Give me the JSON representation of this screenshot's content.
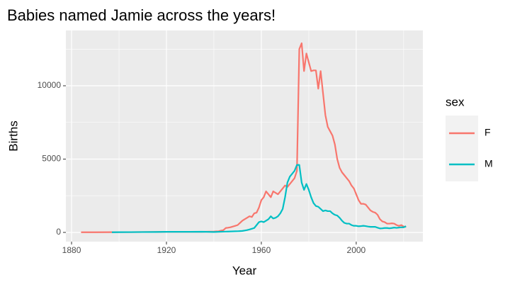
{
  "chart_data": {
    "type": "line",
    "title": "Babies named Jamie across the years!",
    "x_label": "Year",
    "y_label": "Births",
    "legend_title": "sex",
    "x": [
      1884,
      1890,
      1897,
      1900,
      1905,
      1910,
      1915,
      1920,
      1925,
      1930,
      1935,
      1940,
      1941,
      1942,
      1943,
      1944,
      1945,
      1946,
      1947,
      1948,
      1949,
      1950,
      1951,
      1952,
      1953,
      1954,
      1955,
      1956,
      1957,
      1958,
      1959,
      1960,
      1961,
      1962,
      1963,
      1964,
      1965,
      1966,
      1967,
      1968,
      1969,
      1970,
      1971,
      1972,
      1973,
      1974,
      1975,
      1976,
      1977,
      1978,
      1979,
      1980,
      1981,
      1982,
      1983,
      1984,
      1985,
      1986,
      1987,
      1988,
      1989,
      1990,
      1991,
      1992,
      1993,
      1994,
      1995,
      1996,
      1997,
      1998,
      1999,
      2000,
      2001,
      2002,
      2003,
      2004,
      2005,
      2006,
      2007,
      2008,
      2009,
      2010,
      2011,
      2012,
      2013,
      2014,
      2015,
      2016,
      2017,
      2018,
      2019,
      2020,
      2021
    ],
    "series": [
      {
        "name": "F",
        "color": "#f8766d",
        "values": [
          10,
          10,
          15,
          20,
          20,
          25,
          30,
          40,
          40,
          40,
          40,
          60,
          70,
          80,
          120,
          150,
          300,
          320,
          350,
          400,
          450,
          500,
          650,
          800,
          900,
          1000,
          1100,
          1050,
          1300,
          1350,
          1700,
          2200,
          2400,
          2800,
          2600,
          2400,
          2800,
          2700,
          2600,
          2800,
          3000,
          3200,
          3100,
          3300,
          3500,
          3700,
          4200,
          12500,
          12900,
          11000,
          12200,
          11600,
          11000,
          11050,
          11050,
          9800,
          11000,
          9500,
          8000,
          7200,
          6900,
          6600,
          6000,
          5000,
          4400,
          4100,
          3900,
          3700,
          3500,
          3200,
          3000,
          2600,
          2200,
          1950,
          1950,
          1900,
          1700,
          1500,
          1400,
          1350,
          1200,
          900,
          750,
          700,
          600,
          600,
          620,
          600,
          500,
          450,
          500,
          400,
          380
        ]
      },
      {
        "name": "M",
        "color": "#00bfc4",
        "values": [
          null,
          null,
          10,
          15,
          20,
          25,
          30,
          40,
          40,
          40,
          45,
          30,
          35,
          40,
          45,
          50,
          55,
          60,
          65,
          70,
          75,
          80,
          90,
          100,
          130,
          160,
          200,
          250,
          300,
          500,
          700,
          750,
          700,
          800,
          900,
          1100,
          950,
          1000,
          1100,
          1300,
          1600,
          2400,
          3400,
          3800,
          4000,
          4200,
          4600,
          4600,
          3400,
          2900,
          3300,
          2900,
          2400,
          2000,
          1800,
          1750,
          1600,
          1450,
          1500,
          1450,
          1450,
          1300,
          1200,
          1150,
          1000,
          800,
          650,
          600,
          600,
          500,
          450,
          450,
          420,
          430,
          450,
          430,
          400,
          380,
          380,
          380,
          320,
          270,
          280,
          300,
          300,
          280,
          300,
          330,
          310,
          330,
          350,
          350,
          420
        ]
      }
    ],
    "xlim": [
      1877.6,
      2028.1
    ],
    "xticks": [
      1880,
      1920,
      1960,
      2000
    ],
    "xminor": [
      1900,
      1940,
      1980,
      2020
    ],
    "ylim": [
      -630,
      13770
    ],
    "yticks": [
      0,
      5000,
      10000
    ],
    "yminor": [
      2500,
      7500,
      12500
    ],
    "grid": true,
    "legend": "right"
  }
}
